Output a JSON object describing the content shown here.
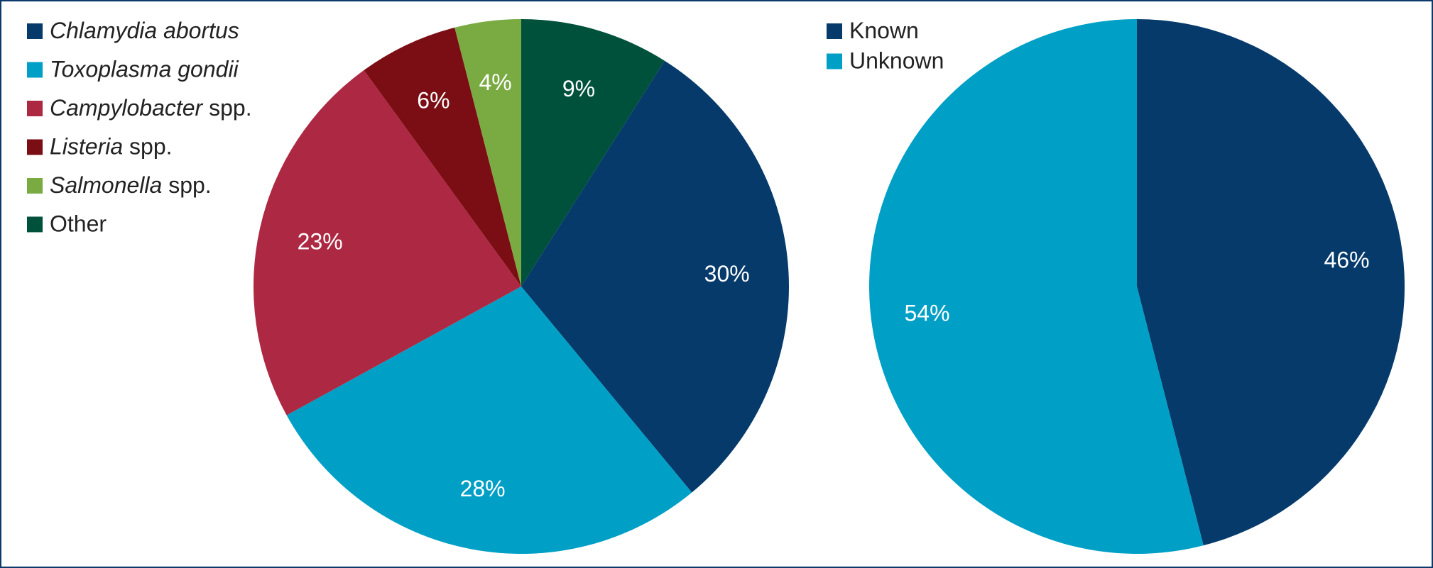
{
  "chart_data": [
    {
      "type": "pie",
      "legend_position": "top-left",
      "slices": [
        {
          "name": "Chlamydia abortus",
          "name_italic": "Chlamydia abortus",
          "name_rest": "",
          "value": 30,
          "label": "30%",
          "color": "#063a6b"
        },
        {
          "name": "Toxoplasma gondii",
          "name_italic": "Toxoplasma gondii",
          "name_rest": "",
          "value": 28,
          "label": "28%",
          "color": "#00a0c6"
        },
        {
          "name": "Campylobacter spp.",
          "name_italic": "Campylobacter",
          "name_rest": " spp.",
          "value": 23,
          "label": "23%",
          "color": "#ad2943"
        },
        {
          "name": "Listeria spp.",
          "name_italic": "Listeria",
          "name_rest": " spp.",
          "value": 6,
          "label": "6%",
          "color": "#7b0e14"
        },
        {
          "name": "Salmonella spp.",
          "name_italic": "Salmonella",
          "name_rest": " spp.",
          "value": 4,
          "label": "4%",
          "color": "#7aab42"
        },
        {
          "name": "Other",
          "name_italic": "",
          "name_rest": "Other",
          "value": 9,
          "label": "9%",
          "color": "#00513c"
        }
      ],
      "legend_order": [
        0,
        1,
        2,
        3,
        4,
        5
      ],
      "draw_order": [
        5,
        0,
        1,
        2,
        3,
        4
      ]
    },
    {
      "type": "pie",
      "legend_position": "top-left",
      "slices": [
        {
          "name": "Known",
          "name_italic": "",
          "name_rest": "Known",
          "value": 46,
          "label": "46%",
          "color": "#063a6b"
        },
        {
          "name": "Unknown",
          "name_italic": "",
          "name_rest": "Unknown",
          "value": 54,
          "label": "54%",
          "color": "#00a0c6"
        }
      ],
      "legend_order": [
        0,
        1
      ],
      "draw_order": [
        0,
        1
      ]
    }
  ]
}
